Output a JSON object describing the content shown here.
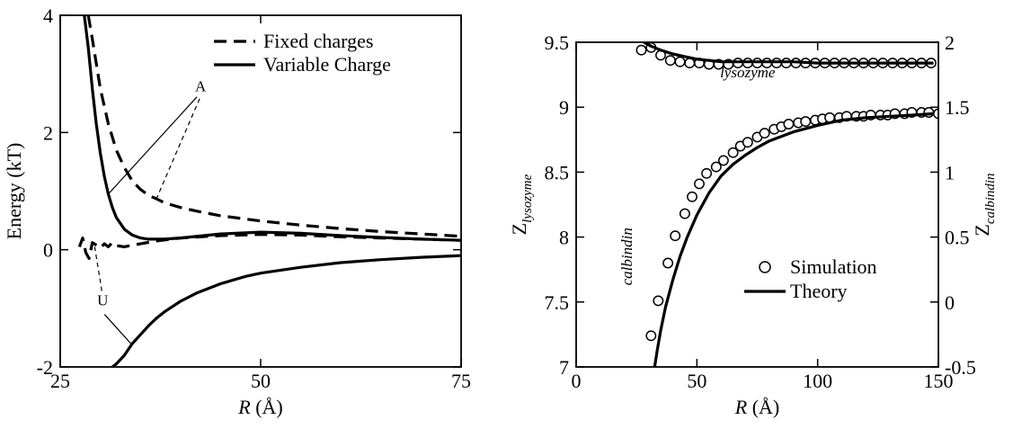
{
  "chart_data": [
    {
      "type": "line",
      "ylabel": "Energy (kT)",
      "xlabel": {
        "symbol": "R",
        "unit": "(Å)"
      },
      "xlim": [
        25,
        75
      ],
      "ylim": [
        -2,
        4
      ],
      "xticks": [
        "25",
        "50",
        "75"
      ],
      "yticks": [
        "-2",
        "0",
        "2",
        "4"
      ],
      "legend_position": "top-right",
      "legend": [
        {
          "label": "Fixed charges",
          "style": "dashed"
        },
        {
          "label": "Variable Charge",
          "style": "solid"
        }
      ],
      "annotations": [
        {
          "text": "A",
          "x": 42.5,
          "y": 2.7
        },
        {
          "text": "U",
          "x": 30.3,
          "y": -0.95
        }
      ],
      "series": [
        {
          "style": "dashed",
          "role": "A-fixed",
          "x": [
            28.5,
            29,
            30,
            31,
            32,
            33,
            34,
            35,
            36,
            37,
            38,
            40,
            42,
            45,
            50,
            55,
            60,
            65,
            70,
            75
          ],
          "y": [
            4.0,
            3.6,
            2.75,
            2.15,
            1.7,
            1.4,
            1.17,
            1.03,
            0.93,
            0.87,
            0.8,
            0.72,
            0.66,
            0.58,
            0.49,
            0.42,
            0.36,
            0.31,
            0.27,
            0.23
          ]
        },
        {
          "style": "solid",
          "role": "A-variable",
          "x": [
            28,
            28.5,
            29,
            29.5,
            30,
            30.5,
            31,
            31.5,
            32,
            33,
            34,
            35,
            36,
            38,
            40,
            45,
            50,
            55,
            60,
            65,
            70,
            75
          ],
          "y": [
            4.0,
            3.45,
            2.75,
            2.15,
            1.65,
            1.25,
            0.95,
            0.72,
            0.55,
            0.35,
            0.25,
            0.2,
            0.18,
            0.18,
            0.2,
            0.27,
            0.3,
            0.28,
            0.24,
            0.21,
            0.18,
            0.16
          ]
        },
        {
          "style": "dashed",
          "role": "U-fixed",
          "x": [
            27.4,
            27.8,
            28.2,
            28.6,
            29,
            29.5,
            30,
            30.5,
            31,
            31.5,
            32,
            33,
            34,
            35,
            37,
            40,
            45,
            50,
            55,
            60,
            65,
            70,
            75
          ],
          "y": [
            0.05,
            0.2,
            -0.05,
            -0.15,
            0.12,
            0.08,
            0.03,
            0.1,
            0.05,
            0.12,
            0.07,
            0.05,
            0.08,
            0.1,
            0.15,
            0.2,
            0.24,
            0.26,
            0.25,
            0.22,
            0.2,
            0.18,
            0.16
          ]
        },
        {
          "style": "solid",
          "role": "U-variable",
          "x": [
            31.5,
            32,
            33,
            34,
            35,
            36,
            37,
            38,
            40,
            42,
            45,
            48,
            50,
            55,
            60,
            65,
            70,
            75
          ],
          "y": [
            -2.0,
            -1.95,
            -1.8,
            -1.6,
            -1.45,
            -1.3,
            -1.17,
            -1.06,
            -0.88,
            -0.74,
            -0.58,
            -0.46,
            -0.4,
            -0.3,
            -0.22,
            -0.17,
            -0.13,
            -0.1
          ]
        }
      ]
    },
    {
      "type": "scatter",
      "ylabel_left": {
        "base": "Z",
        "sub": "lysozyme"
      },
      "ylabel_right": {
        "base": "Z",
        "sub": "calbindin"
      },
      "xlabel": {
        "symbol": "R",
        "unit": "(Å)"
      },
      "xlim": [
        0,
        150
      ],
      "ylim_left": [
        7,
        9.5
      ],
      "ylim_right": [
        -0.5,
        2
      ],
      "xticks": [
        "0",
        "50",
        "100",
        "150"
      ],
      "yticks_left": [
        "7",
        "7.5",
        "8",
        "8.5",
        "9",
        "9.5"
      ],
      "yticks_right": [
        "-0.5",
        "0",
        "0.5",
        "1",
        "1.5",
        "2"
      ],
      "legend_position": "center-right",
      "legend": [
        {
          "label": "Simulation",
          "style": "circle"
        },
        {
          "label": "Theory",
          "style": "solid"
        }
      ],
      "annotations": [
        {
          "text": "lysozyme",
          "x": 71,
          "y": 9.23
        },
        {
          "text": "calbindin",
          "x": 23,
          "y": 7.85
        }
      ],
      "series": [
        {
          "style": "circle",
          "role": "lysozyme-simulation",
          "axis": "left",
          "x": [
            27,
            31,
            35,
            39,
            43,
            47,
            51,
            55,
            59,
            63,
            67,
            71,
            75,
            79,
            83,
            87,
            91,
            95,
            99,
            103,
            107,
            111,
            115,
            119,
            123,
            127,
            131,
            135,
            139,
            143,
            147
          ],
          "y": [
            9.44,
            9.46,
            9.4,
            9.36,
            9.35,
            9.34,
            9.34,
            9.33,
            9.33,
            9.33,
            9.34,
            9.34,
            9.34,
            9.34,
            9.34,
            9.34,
            9.34,
            9.34,
            9.34,
            9.34,
            9.34,
            9.34,
            9.34,
            9.34,
            9.34,
            9.34,
            9.34,
            9.34,
            9.34,
            9.34,
            9.34
          ]
        },
        {
          "style": "solid",
          "role": "lysozyme-theory",
          "axis": "left",
          "x": [
            28,
            31,
            35,
            40,
            45,
            50,
            55,
            60,
            65,
            70,
            80,
            90,
            100,
            110,
            120,
            130,
            140,
            148
          ],
          "y": [
            9.5,
            9.47,
            9.44,
            9.41,
            9.39,
            9.37,
            9.36,
            9.35,
            9.35,
            9.35,
            9.35,
            9.35,
            9.34,
            9.34,
            9.34,
            9.34,
            9.34,
            9.34
          ]
        },
        {
          "style": "circle",
          "role": "calbindin-simulation",
          "axis": "right",
          "x": [
            31,
            34,
            38,
            41,
            45,
            48,
            51,
            54,
            58,
            61,
            65,
            68,
            71,
            75,
            78,
            82,
            85,
            88,
            92,
            95,
            99,
            102,
            105,
            109,
            112,
            116,
            119,
            122,
            126,
            129,
            132,
            136,
            139,
            143,
            146,
            150
          ],
          "y": [
            -0.26,
            0.01,
            0.3,
            0.51,
            0.68,
            0.81,
            0.91,
            0.99,
            1.04,
            1.09,
            1.15,
            1.2,
            1.23,
            1.27,
            1.3,
            1.33,
            1.35,
            1.37,
            1.38,
            1.39,
            1.4,
            1.41,
            1.42,
            1.42,
            1.43,
            1.43,
            1.43,
            1.44,
            1.44,
            1.44,
            1.45,
            1.45,
            1.46,
            1.46,
            1.46,
            1.45
          ]
        },
        {
          "style": "solid",
          "role": "calbindin-theory",
          "axis": "right",
          "x": [
            32.5,
            33.5,
            35,
            37,
            40,
            43,
            46,
            50,
            55,
            60,
            65,
            70,
            75,
            80,
            90,
            100,
            110,
            120,
            130,
            140,
            148
          ],
          "y": [
            -0.5,
            -0.38,
            -0.22,
            -0.04,
            0.17,
            0.35,
            0.5,
            0.67,
            0.84,
            0.97,
            1.06,
            1.13,
            1.19,
            1.24,
            1.31,
            1.36,
            1.4,
            1.42,
            1.43,
            1.44,
            1.45
          ]
        }
      ]
    }
  ]
}
